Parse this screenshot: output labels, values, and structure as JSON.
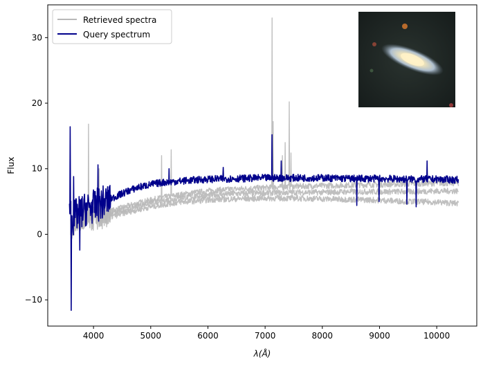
{
  "chart_data": {
    "type": "line",
    "title": "",
    "xlabel": "λ(Å)",
    "ylabel": "Flux",
    "xlim": [
      3200,
      10700
    ],
    "ylim": [
      -14,
      35
    ],
    "xticks": [
      4000,
      5000,
      6000,
      7000,
      8000,
      9000,
      10000
    ],
    "yticks": [
      -10,
      0,
      10,
      20,
      30
    ],
    "grid": false,
    "legend_position": "top-left",
    "series": [
      {
        "name": "Retrieved spectra",
        "color": "#b8b8b8",
        "role": "retrieved",
        "x": [
          3600,
          3700,
          3800,
          3900,
          4000,
          4200,
          4400,
          4600,
          4800,
          5000,
          5200,
          5500,
          5800,
          6100,
          6500,
          7000,
          7500,
          8000,
          8500,
          9000,
          9500,
          10000,
          10380
        ],
        "values": [
          1.5,
          2.5,
          2.8,
          3.0,
          3.0,
          3.2,
          3.8,
          4.3,
          4.8,
          5.2,
          5.6,
          6.0,
          6.4,
          6.7,
          6.9,
          7.1,
          7.3,
          7.4,
          7.5,
          7.6,
          7.7,
          7.8,
          7.8
        ],
        "spikes": [
          [
            3910,
            16.8
          ],
          [
            4100,
            10.0
          ],
          [
            5190,
            12.0
          ],
          [
            5360,
            12.9
          ],
          [
            7120,
            33.0
          ],
          [
            7140,
            17.2
          ],
          [
            7300,
            12.0
          ],
          [
            7350,
            14.0
          ],
          [
            7420,
            20.2
          ],
          [
            7450,
            12.4
          ]
        ]
      },
      {
        "name": "",
        "color": "#b8b8b8",
        "role": "retrieved",
        "x": [
          3600,
          3700,
          3800,
          3900,
          4000,
          4200,
          4400,
          4600,
          4800,
          5000,
          5200,
          5500,
          5800,
          6100,
          6500,
          7000,
          7500,
          8000,
          8500,
          9000,
          9500,
          10000,
          10380
        ],
        "values": [
          1.2,
          2.0,
          2.3,
          2.5,
          2.6,
          2.9,
          3.4,
          3.9,
          4.4,
          4.8,
          5.1,
          5.5,
          5.8,
          6.0,
          6.2,
          6.3,
          6.4,
          6.4,
          6.5,
          6.5,
          6.5,
          6.6,
          6.6
        ]
      },
      {
        "name": "",
        "color": "#b8b8b8",
        "role": "retrieved",
        "x": [
          3600,
          3700,
          3800,
          3900,
          4000,
          4200,
          4400,
          4600,
          4800,
          5000,
          5200,
          5500,
          5800,
          6100,
          6500,
          7000,
          7500,
          8000,
          8500,
          9000,
          9500,
          10000,
          10380
        ],
        "values": [
          0.8,
          1.5,
          1.8,
          2.0,
          2.1,
          2.4,
          2.9,
          3.4,
          3.8,
          4.2,
          4.5,
          4.9,
          5.1,
          5.3,
          5.4,
          5.5,
          5.5,
          5.4,
          5.3,
          5.2,
          5.0,
          4.9,
          4.7
        ]
      },
      {
        "name": "Query spectrum",
        "color": "#00008b",
        "role": "query",
        "x": [
          3580,
          3620,
          3700,
          3800,
          3900,
          4000,
          4200,
          4400,
          4600,
          4800,
          5000,
          5200,
          5500,
          5800,
          6000,
          6500,
          7000,
          7500,
          8000,
          8500,
          9000,
          9500,
          10000,
          10380
        ],
        "values": [
          6.0,
          2.0,
          3.0,
          3.5,
          4.0,
          4.2,
          5.0,
          5.8,
          6.6,
          7.2,
          7.6,
          7.9,
          8.1,
          8.3,
          8.4,
          8.5,
          8.6,
          8.6,
          8.6,
          8.5,
          8.5,
          8.4,
          8.4,
          8.3
        ],
        "spikes": [
          [
            3590,
            16.4
          ],
          [
            3610,
            -11.6
          ],
          [
            3650,
            8.8
          ],
          [
            3760,
            -2.4
          ],
          [
            4080,
            10.6
          ],
          [
            5320,
            10.0
          ],
          [
            6270,
            10.2
          ],
          [
            7120,
            15.2
          ],
          [
            7280,
            11.2
          ],
          [
            9830,
            11.2
          ],
          [
            9480,
            4.6
          ],
          [
            8990,
            5.0
          ],
          [
            9640,
            4.2
          ],
          [
            8600,
            4.4
          ]
        ]
      }
    ],
    "inset": {
      "type": "image",
      "description_free": true
    }
  }
}
